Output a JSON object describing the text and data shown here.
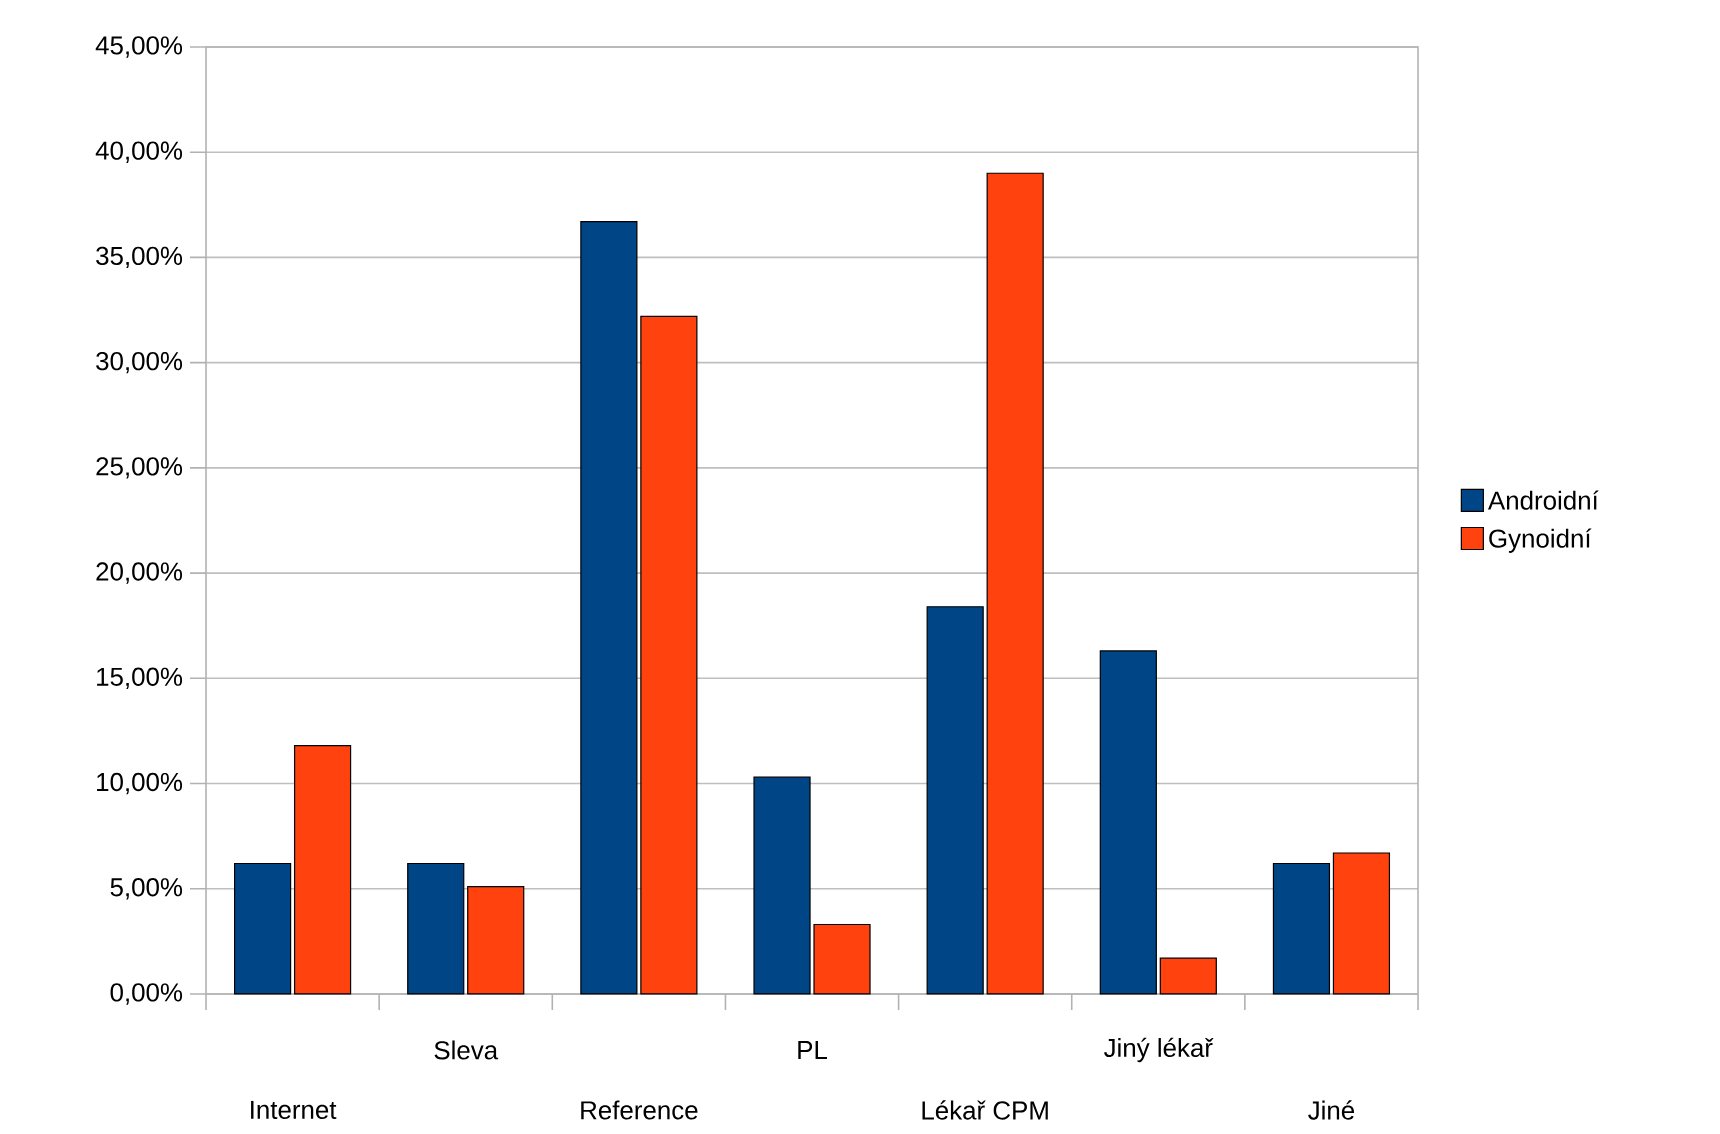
{
  "chart_data": {
    "type": "bar",
    "categories": [
      "Internet",
      "Sleva",
      "Reference",
      "PL",
      "Lékař CPM",
      "Jiný lékař",
      "Jiné"
    ],
    "series": [
      {
        "name": "Androidní",
        "color": "#004586",
        "values": [
          6.2,
          6.2,
          36.7,
          10.3,
          18.4,
          16.3,
          6.2
        ]
      },
      {
        "name": "Gynoidní",
        "color": "#ff420e",
        "values": [
          11.8,
          5.1,
          32.2,
          3.3,
          39.0,
          1.7,
          6.7
        ]
      }
    ],
    "ylim": [
      0,
      45
    ],
    "yticks": [
      {
        "value": 0,
        "label": "0,00%"
      },
      {
        "value": 5,
        "label": "5,00%"
      },
      {
        "value": 10,
        "label": "10,00%"
      },
      {
        "value": 15,
        "label": "15,00%"
      },
      {
        "value": 20,
        "label": "20,00%"
      },
      {
        "value": 25,
        "label": "25,00%"
      },
      {
        "value": 30,
        "label": "30,00%"
      },
      {
        "value": 35,
        "label": "35,00%"
      },
      {
        "value": 40,
        "label": "40,00%"
      },
      {
        "value": 45,
        "label": "45,00%"
      }
    ],
    "grid": "y",
    "legend": "right"
  }
}
